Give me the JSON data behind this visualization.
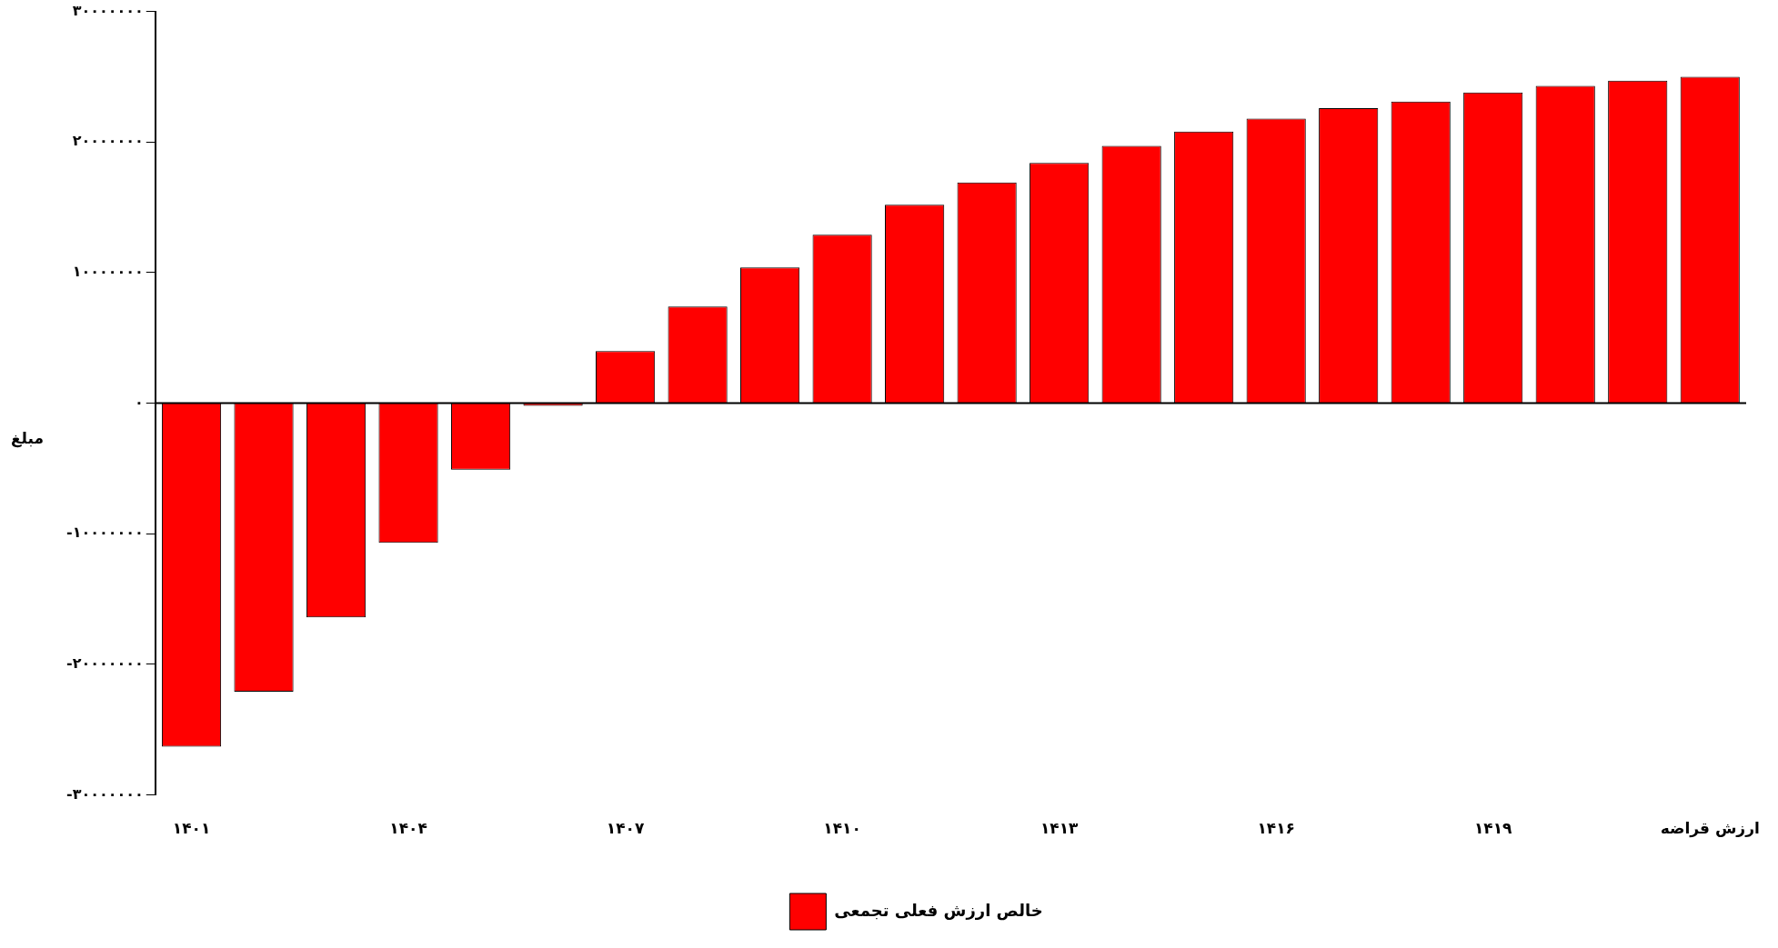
{
  "chart_data": {
    "type": "bar",
    "ylabel": "مبلغ",
    "categories": [
      "۱۴۰۱",
      null,
      null,
      "۱۴۰۴",
      null,
      null,
      "۱۴۰۷",
      null,
      null,
      "۱۴۱۰",
      null,
      null,
      "۱۴۱۳",
      null,
      null,
      "۱۴۱۶",
      null,
      null,
      "۱۴۱۹",
      null,
      null,
      "ارزش قراضه"
    ],
    "series": [
      {
        "name": "خالص ارزش فعلی تجمعی",
        "color": "#ff0000",
        "values": [
          -26300000,
          -22100000,
          -16400000,
          -10700000,
          -5100000,
          -200000,
          4000000,
          7400000,
          10400000,
          12900000,
          15200000,
          16900000,
          18400000,
          19700000,
          20800000,
          21800000,
          22600000,
          23100000,
          23800000,
          24300000,
          24700000,
          25000000
        ]
      }
    ],
    "ylim": [
      -30000000,
      30000000
    ],
    "yticks": [
      {
        "value": -30000000,
        "label": "-۳۰۰۰۰۰۰۰"
      },
      {
        "value": -20000000,
        "label": "-۲۰۰۰۰۰۰۰"
      },
      {
        "value": -10000000,
        "label": "-۱۰۰۰۰۰۰۰"
      },
      {
        "value": 0,
        "label": "۰"
      },
      {
        "value": 10000000,
        "label": "۱۰۰۰۰۰۰۰"
      },
      {
        "value": 20000000,
        "label": "۲۰۰۰۰۰۰۰"
      },
      {
        "value": 30000000,
        "label": "۳۰۰۰۰۰۰۰"
      }
    ],
    "ref_lines": [
      {
        "axis": "y",
        "value": 0,
        "color": "#000000"
      }
    ],
    "grid": false,
    "legend": "bottom"
  }
}
